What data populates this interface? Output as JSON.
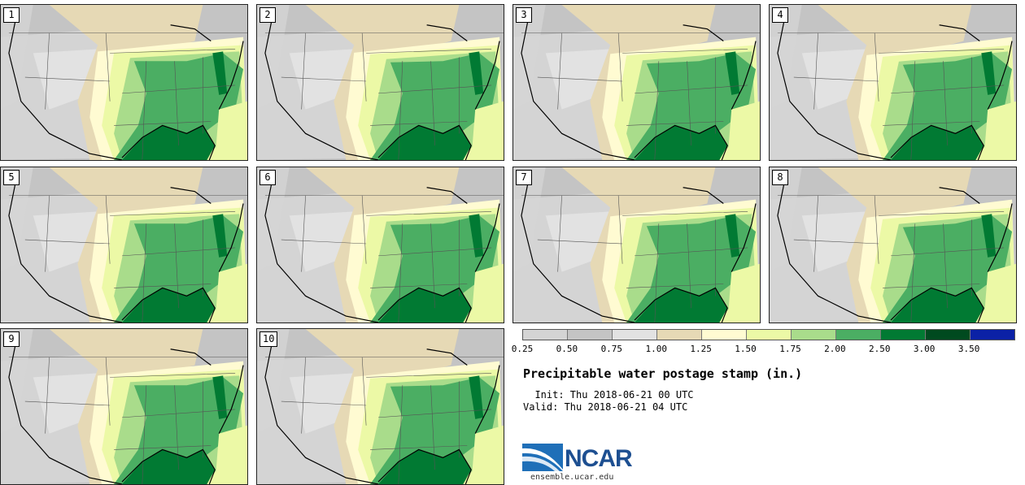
{
  "stamps": [
    {
      "label": "1"
    },
    {
      "label": "2"
    },
    {
      "label": "3"
    },
    {
      "label": "4"
    },
    {
      "label": "5"
    },
    {
      "label": "6"
    },
    {
      "label": "7"
    },
    {
      "label": "8"
    },
    {
      "label": "9"
    },
    {
      "label": "10"
    }
  ],
  "legend": {
    "colors": [
      "#d4d4d4",
      "#c4c4c4",
      "#e2e2e2",
      "#e6d9b5",
      "#fffbd2",
      "#ecf9a6",
      "#a9dc8b",
      "#4bae63",
      "#017a33",
      "#004a1f",
      "#0b21a6"
    ],
    "ticks": [
      "0.25",
      "0.50",
      "0.75",
      "1.00",
      "1.25",
      "1.50",
      "1.75",
      "2.00",
      "2.50",
      "3.00",
      "3.50"
    ]
  },
  "title": "Precipitable water postage stamp (in.)",
  "init_label": "  Init: Thu 2018-06-21 00 UTC",
  "valid_label": "Valid: Thu 2018-06-21 04 UTC",
  "logo": {
    "wordmark": "NCAR",
    "url": "ensemble.ucar.edu"
  }
}
